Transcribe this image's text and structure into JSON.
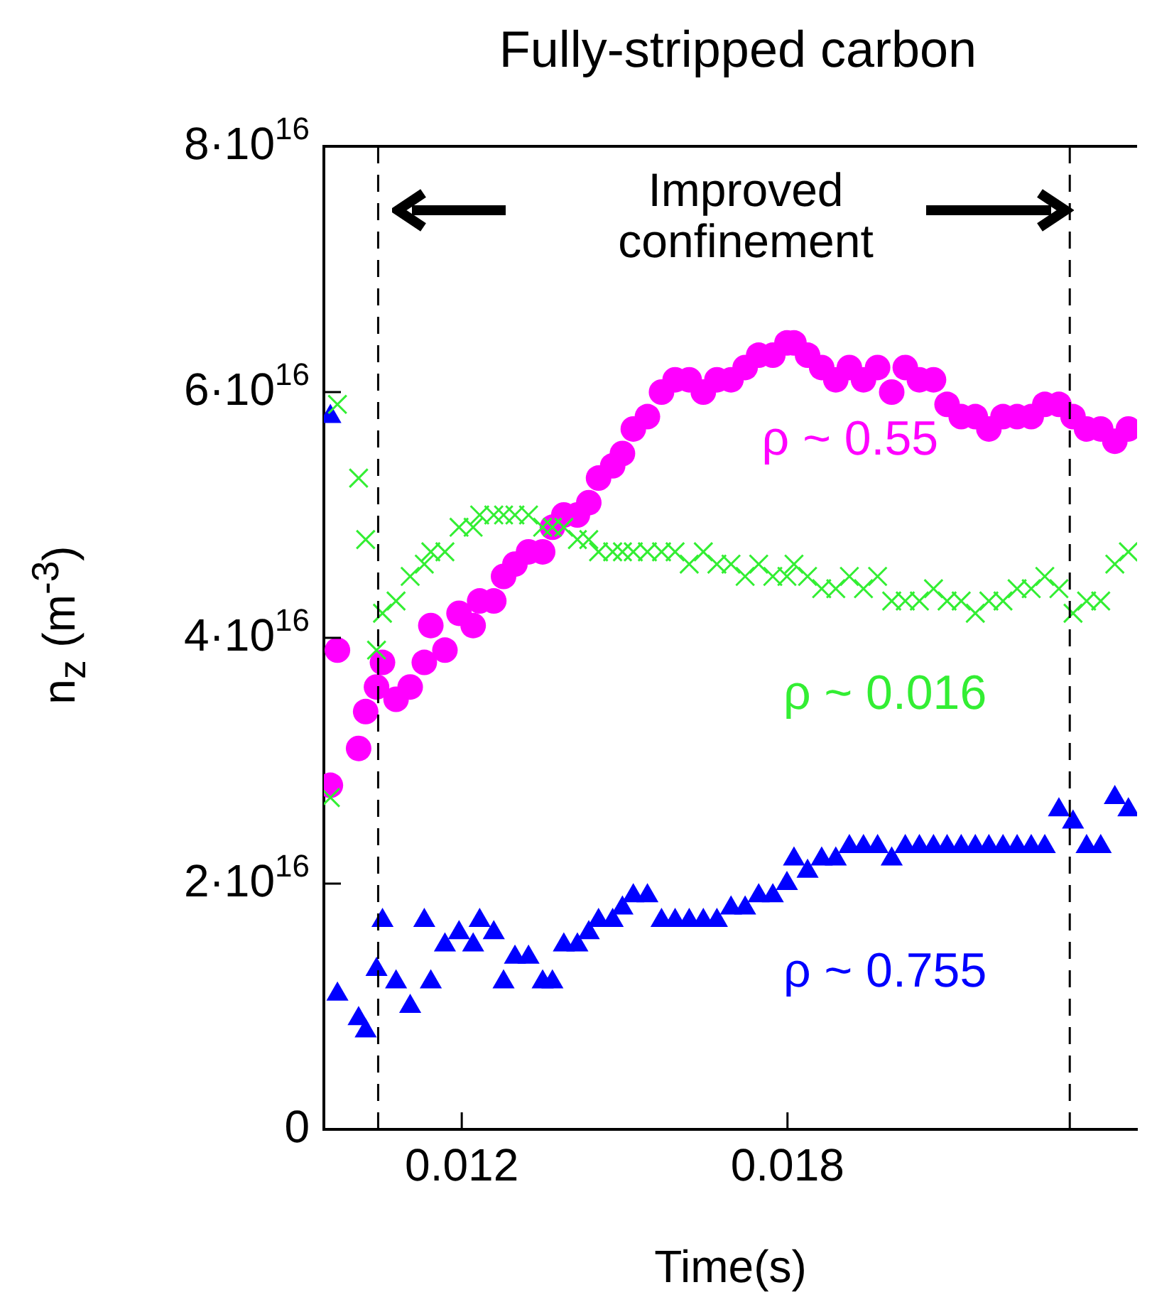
{
  "chart_data": {
    "type": "scatter",
    "title": "Fully-stripped carbon",
    "xlabel": "Time(s)",
    "ylabel": "n$_{z}$ (m$^{-3}$)",
    "annotations": [
      "Improved confinement"
    ],
    "x": [
      0.00958,
      0.00971,
      0.0101,
      0.01023,
      0.01043,
      0.01054,
      0.01079,
      0.01105,
      0.01131,
      0.01143,
      0.01169,
      0.01195,
      0.01221,
      0.01233,
      0.01259,
      0.01277,
      0.01298,
      0.01323,
      0.01349,
      0.01367,
      0.01388,
      0.01413,
      0.01434,
      0.01452,
      0.01478,
      0.01496,
      0.01516,
      0.01542,
      0.01568,
      0.01593,
      0.01619,
      0.01645,
      0.0167,
      0.01696,
      0.01722,
      0.01747,
      0.01773,
      0.01799,
      0.01812,
      0.01837,
      0.01863,
      0.01889,
      0.01914,
      0.0194,
      0.01966,
      0.01992,
      0.02017,
      0.02043,
      0.02069,
      0.02094,
      0.0212,
      0.02146,
      0.02171,
      0.02197,
      0.02223,
      0.02249,
      0.02274,
      0.023,
      0.02326,
      0.02351,
      0.02377,
      0.02403,
      0.02428
    ],
    "series": [
      {
        "name": "ρ ~ 0.55",
        "color": "#ff00ff",
        "marker": "circle",
        "values": [
          2.8e+16,
          3.9e+16,
          3.1e+16,
          3.4e+16,
          3.6e+16,
          3.8e+16,
          3.5e+16,
          3.6e+16,
          3.8e+16,
          4.1e+16,
          3.9e+16,
          4.2e+16,
          4.1e+16,
          4.3e+16,
          4.3e+16,
          4.5e+16,
          4.6e+16,
          4.7e+16,
          4.7e+16,
          4.9e+16,
          5e+16,
          5e+16,
          5.1e+16,
          5.3e+16,
          5.4e+16,
          5.5e+16,
          5.7e+16,
          5.8e+16,
          6e+16,
          6.1e+16,
          6.1e+16,
          6e+16,
          6.1e+16,
          6.1e+16,
          6.2e+16,
          6.3e+16,
          6.3e+16,
          6.4e+16,
          6.4e+16,
          6.3e+16,
          6.2e+16,
          6.1e+16,
          6.2e+16,
          6.1e+16,
          6.2e+16,
          6e+16,
          6.2e+16,
          6.1e+16,
          6.1e+16,
          5.9e+16,
          5.8e+16,
          5.8e+16,
          5.7e+16,
          5.8e+16,
          5.8e+16,
          5.8e+16,
          5.9e+16,
          5.9e+16,
          5.8e+16,
          5.7e+16,
          5.7e+16,
          5.6e+16,
          5.7e+16
        ]
      },
      {
        "name": "ρ ~ 0.016",
        "color": "#33ee33",
        "marker": "cross",
        "values": [
          2.7e+16,
          5.9e+16,
          5.3e+16,
          4.8e+16,
          3.9e+16,
          4.2e+16,
          4.3e+16,
          4.5e+16,
          4.6e+16,
          4.7e+16,
          4.7e+16,
          4.9e+16,
          4.9e+16,
          5e+16,
          5e+16,
          5e+16,
          5e+16,
          5e+16,
          4.9e+16,
          4.9e+16,
          4.9e+16,
          4.8e+16,
          4.8e+16,
          4.7e+16,
          4.7e+16,
          4.7e+16,
          4.7e+16,
          4.7e+16,
          4.7e+16,
          4.7e+16,
          4.6e+16,
          4.7e+16,
          4.6e+16,
          4.6e+16,
          4.5e+16,
          4.6e+16,
          4.5e+16,
          4.5e+16,
          4.6e+16,
          4.5e+16,
          4.4e+16,
          4.4e+16,
          4.5e+16,
          4.4e+16,
          4.5e+16,
          4.3e+16,
          4.3e+16,
          4.3e+16,
          4.4e+16,
          4.3e+16,
          4.3e+16,
          4.2e+16,
          4.3e+16,
          4.3e+16,
          4.4e+16,
          4.4e+16,
          4.5e+16,
          4.4e+16,
          4.2e+16,
          4.3e+16,
          4.3e+16,
          4.6e+16,
          4.7e+16
        ]
      },
      {
        "name": "ρ ~ 0.755",
        "color": "#0000ff",
        "marker": "triangle",
        "values": [
          5.8e+16,
          1.1e+16,
          9000000000000000.0,
          8000000000000000.0,
          1.3e+16,
          1.7e+16,
          1.2e+16,
          1e+16,
          1.7e+16,
          1.2e+16,
          1.5e+16,
          1.6e+16,
          1.5e+16,
          1.7e+16,
          1.6e+16,
          1.2e+16,
          1.4e+16,
          1.4e+16,
          1.2e+16,
          1.2e+16,
          1.5e+16,
          1.5e+16,
          1.6e+16,
          1.7e+16,
          1.7e+16,
          1.8e+16,
          1.9e+16,
          1.9e+16,
          1.7e+16,
          1.7e+16,
          1.7e+16,
          1.7e+16,
          1.7e+16,
          1.8e+16,
          1.8e+16,
          1.9e+16,
          1.9e+16,
          2e+16,
          2.2e+16,
          2.1e+16,
          2.2e+16,
          2.2e+16,
          2.3e+16,
          2.3e+16,
          2.3e+16,
          2.2e+16,
          2.3e+16,
          2.3e+16,
          2.3e+16,
          2.3e+16,
          2.3e+16,
          2.3e+16,
          2.3e+16,
          2.3e+16,
          2.3e+16,
          2.3e+16,
          2.3e+16,
          2.6e+16,
          2.5e+16,
          2.3e+16,
          2.3e+16,
          2.7e+16,
          2.6e+16
        ]
      }
    ],
    "xlim": [
      0.00946,
      0.02444
    ],
    "xticks": [
      0.012,
      0.018
    ],
    "ylim": [
      0,
      8e+16
    ],
    "yticks": [
      0,
      {
        "value": 2e+16,
        "label": "2·10$^{16}$"
      },
      {
        "value": 4e+16,
        "label": "4·10$^{16}$"
      },
      {
        "value": 6e+16,
        "label": "6·10$^{16}$"
      },
      {
        "value": 8e+16,
        "label": "8·10$^{16}$"
      }
    ],
    "ref_lines": [
      {
        "axis": "x",
        "value": 0.01046,
        "line_style": "dashed"
      },
      {
        "axis": "x",
        "value": 0.0232,
        "line_style": "dashed"
      }
    ],
    "grid": false,
    "legend": false
  }
}
